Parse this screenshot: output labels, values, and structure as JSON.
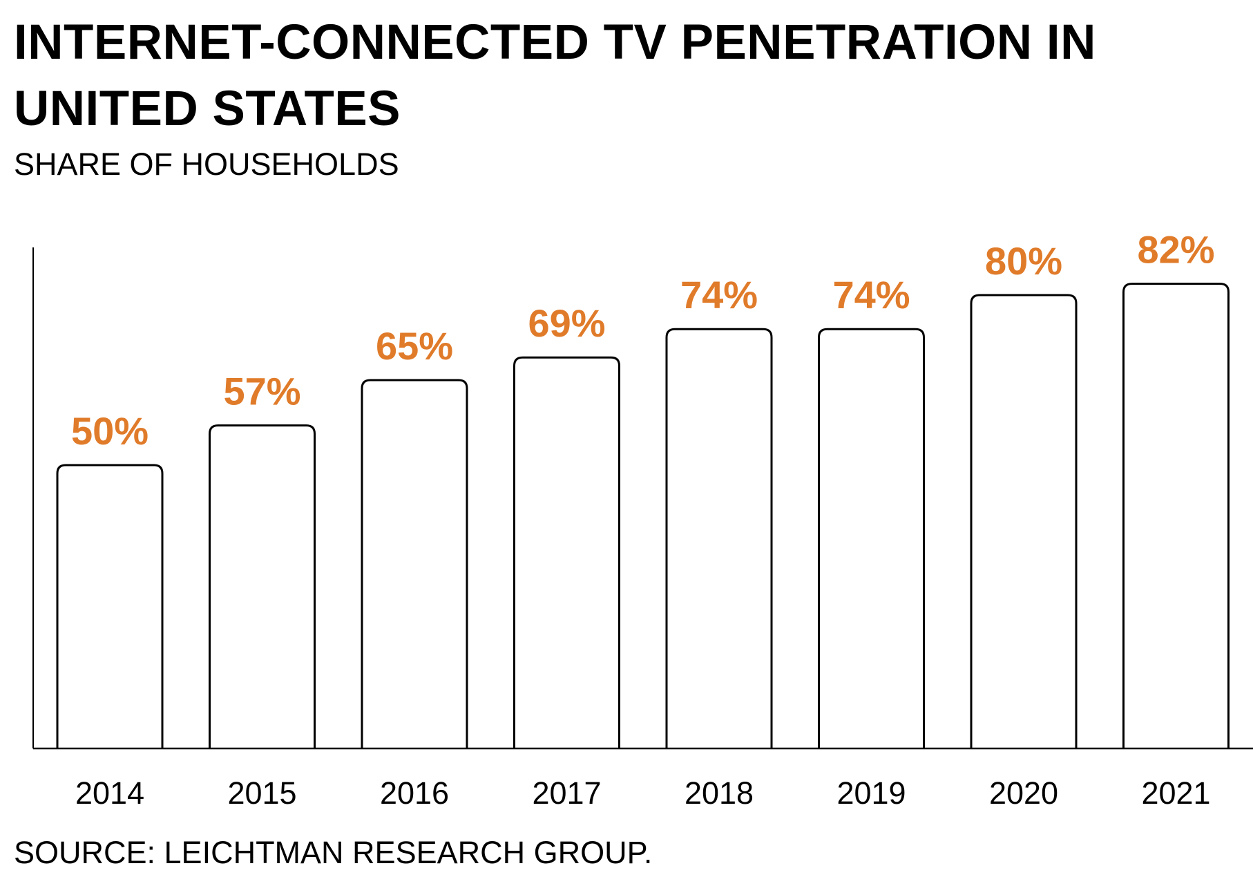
{
  "chart_data": {
    "type": "bar",
    "title": "INTERNET-CONNECTED TV PENETRATION IN UNITED STATES",
    "subtitle": "SHARE OF HOUSEHOLDS",
    "source": "SOURCE: LEICHTMAN RESEARCH GROUP.",
    "categories": [
      "2014",
      "2015",
      "2016",
      "2017",
      "2018",
      "2019",
      "2020",
      "2021"
    ],
    "values": [
      50,
      57,
      65,
      69,
      74,
      74,
      80,
      82
    ],
    "value_labels": [
      "50%",
      "57%",
      "65%",
      "69%",
      "74%",
      "74%",
      "80%",
      "82%"
    ],
    "xlabel": "",
    "ylabel": "",
    "ylim": [
      0,
      100
    ],
    "grid": false,
    "legend": "none",
    "colors": {
      "bar_fill": "#ffffff",
      "bar_stroke": "#000000",
      "value_label": "#e07b2a",
      "axis": "#000000"
    }
  }
}
